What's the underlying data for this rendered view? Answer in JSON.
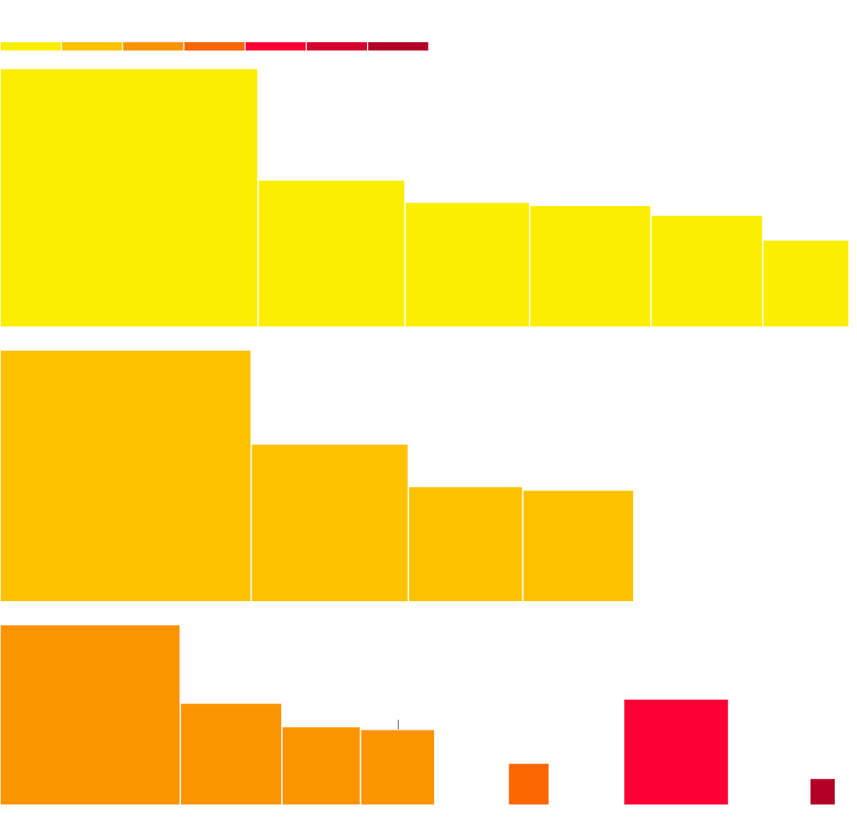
{
  "palette": [
    "#fcee00",
    "#fcc200",
    "#fc9400",
    "#fc6600",
    "#fc0035",
    "#d4002e",
    "#b20027"
  ],
  "chart_data": {
    "type": "bar",
    "description_note": "",
    "legend": {
      "position": "top-left",
      "entries": [
        {
          "color": "#fcee00"
        },
        {
          "color": "#fcc200"
        },
        {
          "color": "#fc9400"
        },
        {
          "color": "#fc6600"
        },
        {
          "color": "#fc0035"
        },
        {
          "color": "#d4002e"
        },
        {
          "color": "#b20027"
        }
      ]
    },
    "panels": [
      {
        "color": "#fcee00",
        "bars": [
          {
            "width_share": 30.2,
            "value": 100
          },
          {
            "width_share": 17.2,
            "value": 56.7
          },
          {
            "width_share": 14.6,
            "value": 48.0
          },
          {
            "width_share": 14.2,
            "value": 46.8
          },
          {
            "width_share": 13.1,
            "value": 43.0
          },
          {
            "width_share": 10.1,
            "value": 33.4
          }
        ]
      },
      {
        "color": "#fcc200",
        "bars": [
          {
            "width_share": 29.4,
            "value": 100
          },
          {
            "width_share": 18.4,
            "value": 62.5
          },
          {
            "width_share": 13.4,
            "value": 45.5
          },
          {
            "width_share": 13.0,
            "value": 44.1
          }
        ]
      },
      {
        "color": "#fc9400",
        "bars": [
          {
            "width_share": 21.1,
            "value": 100
          },
          {
            "width_share": 11.9,
            "value": 56.2
          },
          {
            "width_share": 9.2,
            "value": 43.1
          },
          {
            "width_share": 8.7,
            "value": 41.5
          },
          {
            "width_share": 4.8,
            "value": 22.7,
            "color": "#fc6600",
            "offset_share": 8.6
          },
          {
            "width_share": 12.3,
            "value": 58.5,
            "color": "#fc0035",
            "offset_share": 8.7
          },
          {
            "width_share": 3.0,
            "value": 14.2,
            "color": "#b20027",
            "offset_share": 9.5
          }
        ],
        "annotation_tick": {
          "at_bar": 3
        }
      }
    ]
  }
}
